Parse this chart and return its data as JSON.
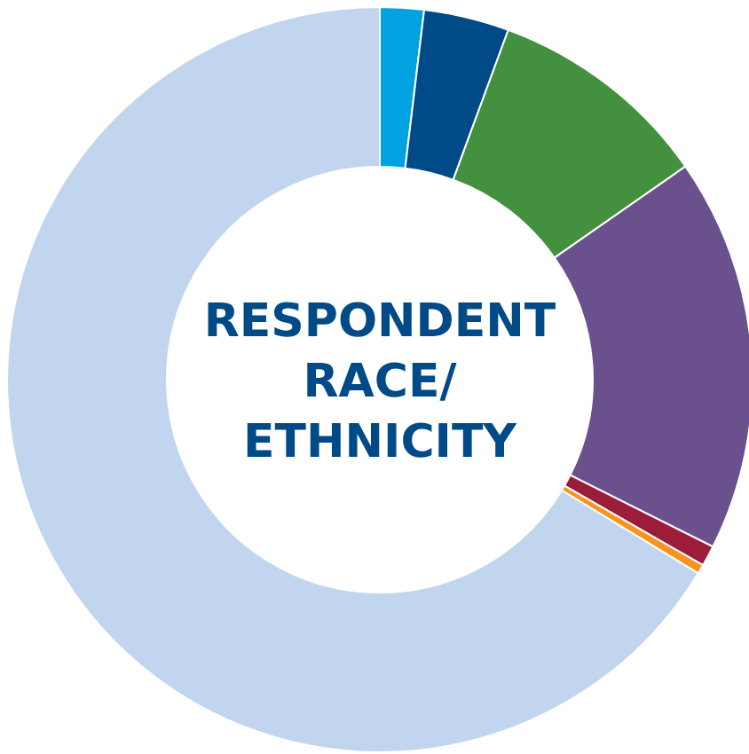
{
  "chart_data": {
    "type": "donut",
    "title": "RESPONDENT RACE/ ETHNICITY",
    "categories": [
      null,
      null,
      null,
      null,
      null,
      null,
      null
    ],
    "values": [
      1.9,
      3.7,
      9.7,
      17.1,
      0.9,
      0.4,
      66.3
    ],
    "colors": [
      "#00a3e0",
      "#004b87",
      "#43913f",
      "#6b508e",
      "#9b1d3a",
      "#f7941d",
      "#c2d5ee"
    ]
  }
}
